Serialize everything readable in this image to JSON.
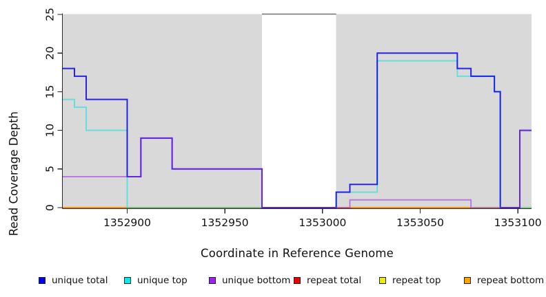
{
  "chart_data": {
    "type": "line",
    "subtype": "step-coverage-plot",
    "title": "",
    "xlabel": "Coordinate in Reference Genome",
    "ylabel": "Read Coverage Depth",
    "xlim": [
      1352867,
      1353107
    ],
    "ylim": [
      0,
      25
    ],
    "x_ticks": [
      1352900,
      1352950,
      1353000,
      1353050,
      1353100
    ],
    "y_ticks": [
      0,
      5,
      10,
      15,
      20,
      25
    ],
    "grid": "off",
    "region_fill_color": "#d9d9d9",
    "gap_edge_color": "#6e6e6e",
    "axis_color": "#262626",
    "shaded_regions": [
      {
        "from": 1352867,
        "to": 1352969
      },
      {
        "from": 1353007,
        "to": 1353107
      }
    ],
    "uncovered_gap": {
      "from": 1352969,
      "to": 1353007
    },
    "series": [
      {
        "name": "repeat total",
        "color": "#dd0000",
        "opacity": 1,
        "width": 1.6,
        "steps": [
          [
            1352867,
            0
          ]
        ],
        "end": 1353107
      },
      {
        "name": "repeat top",
        "color": "#eeee00",
        "opacity": 1,
        "width": 1.6,
        "steps": [
          [
            1352867,
            0
          ]
        ],
        "end": 1353107
      },
      {
        "name": "repeat bottom",
        "color": "#ff8c00",
        "opacity": 1,
        "width": 2,
        "steps": [
          [
            1352867,
            0
          ]
        ],
        "end": 1353076
      },
      {
        "name": "unique top",
        "color": "#00e0e0",
        "opacity": 0.52,
        "width": 2,
        "steps": [
          [
            1352867,
            14
          ],
          [
            1352873,
            13
          ],
          [
            1352879,
            10
          ],
          [
            1352900,
            0
          ],
          [
            1353007,
            2
          ],
          [
            1353028,
            19
          ],
          [
            1353069,
            17
          ],
          [
            1353088,
            15
          ],
          [
            1353091,
            0
          ]
        ],
        "end": 1353107
      },
      {
        "name": "unique total",
        "color": "#0a0ae8",
        "opacity": 0.88,
        "width": 2,
        "steps": [
          [
            1352867,
            18
          ],
          [
            1352873,
            17
          ],
          [
            1352879,
            14
          ],
          [
            1352900,
            4
          ],
          [
            1352907,
            9
          ],
          [
            1352923,
            5
          ],
          [
            1352969,
            0
          ],
          [
            1353007,
            2
          ],
          [
            1353014,
            3
          ],
          [
            1353028,
            20
          ],
          [
            1353069,
            18
          ],
          [
            1353076,
            17
          ],
          [
            1353088,
            15
          ],
          [
            1353091,
            0
          ],
          [
            1353101,
            10
          ]
        ],
        "end": 1353107
      },
      {
        "name": "unique bottom",
        "color": "#a020f0",
        "opacity": 0.52,
        "width": 2,
        "steps": [
          [
            1352867,
            4
          ],
          [
            1352907,
            9
          ],
          [
            1352923,
            5
          ],
          [
            1352969,
            0
          ],
          [
            1353014,
            1
          ],
          [
            1353076,
            0
          ],
          [
            1353101,
            10
          ]
        ],
        "end": 1353107
      }
    ],
    "legend": [
      {
        "label": "unique total",
        "color": "#0000ee"
      },
      {
        "label": "unique top",
        "color": "#00eeee"
      },
      {
        "label": "unique bottom",
        "color": "#a020f0"
      },
      {
        "label": "repeat total",
        "color": "#ee0000"
      },
      {
        "label": "repeat top",
        "color": "#eeee00"
      },
      {
        "label": "repeat bottom",
        "color": "#ffa500"
      }
    ],
    "legend_position": "bottom"
  }
}
